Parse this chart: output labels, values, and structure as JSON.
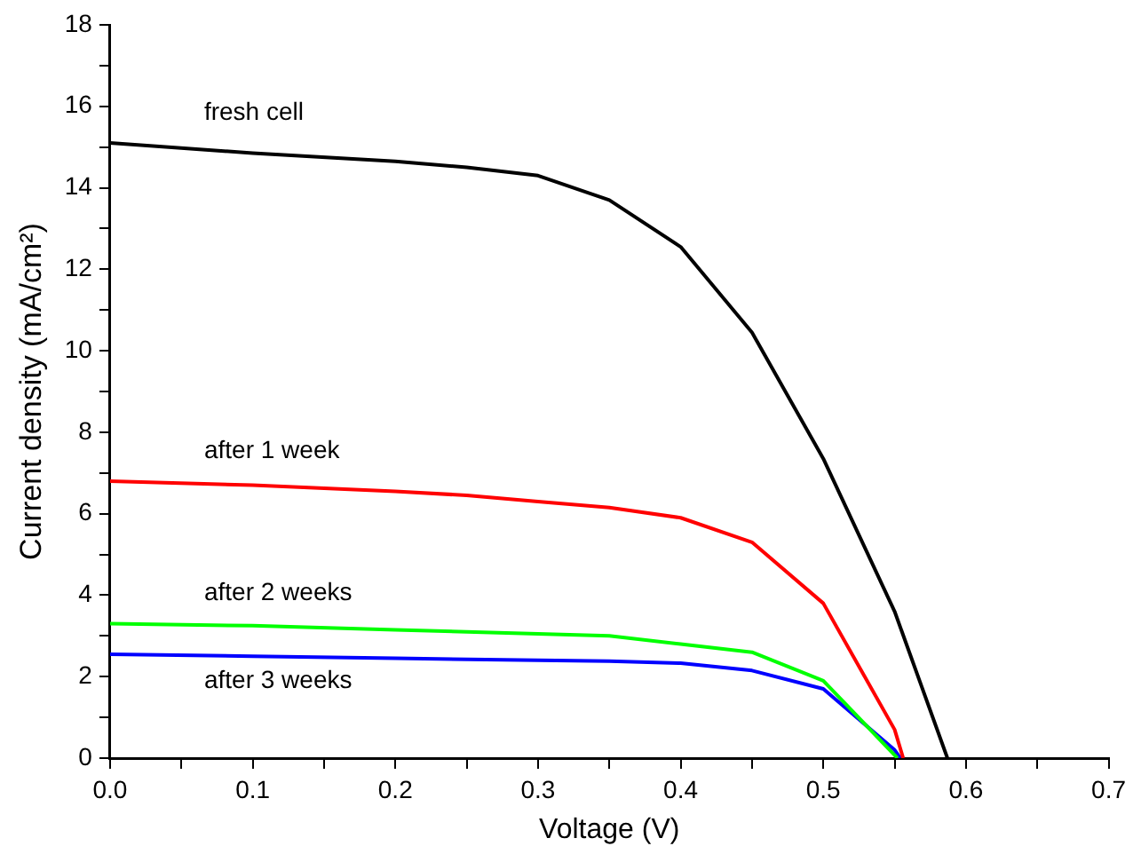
{
  "chart_data": {
    "type": "line",
    "xlabel": "Voltage (V)",
    "ylabel": "Current density (mA/cm²)",
    "xlim": [
      0,
      0.7
    ],
    "ylim": [
      0,
      18
    ],
    "xticks": [
      {
        "value": 0,
        "label": "0.0"
      },
      {
        "value": 0.05,
        "label": null
      },
      0.1,
      {
        "value": 0.15,
        "label": null
      },
      0.2,
      {
        "value": 0.25,
        "label": null
      },
      0.3,
      {
        "value": 0.35,
        "label": null
      },
      0.4,
      {
        "value": 0.45,
        "label": null
      },
      0.5,
      {
        "value": 0.55,
        "label": null
      },
      0.6,
      {
        "value": 0.65,
        "label": null
      },
      0.7
    ],
    "yticks": [
      0,
      {
        "value": 1,
        "label": null
      },
      2,
      {
        "value": 3,
        "label": null
      },
      4,
      {
        "value": 5,
        "label": null
      },
      6,
      {
        "value": 7,
        "label": null
      },
      8,
      {
        "value": 9,
        "label": null
      },
      10,
      {
        "value": 11,
        "label": null
      },
      12,
      {
        "value": 13,
        "label": null
      },
      14,
      {
        "value": 15,
        "label": null
      },
      16,
      {
        "value": 17,
        "label": null
      },
      18
    ],
    "grid": false,
    "legend": false,
    "marker": "none",
    "line_style": "solid",
    "series": [
      {
        "name": "fresh cell",
        "color": "#000000",
        "x": [
          0,
          0.1,
          0.2,
          0.25,
          0.3,
          0.35,
          0.4,
          0.45,
          0.5,
          0.55,
          0.587
        ],
        "values": [
          15.1,
          14.85,
          14.65,
          14.5,
          14.3,
          13.7,
          12.55,
          10.45,
          7.35,
          3.6,
          0
        ]
      },
      {
        "name": "after 1 week",
        "color": "#ff0000",
        "x": [
          0,
          0.1,
          0.2,
          0.25,
          0.3,
          0.35,
          0.4,
          0.45,
          0.5,
          0.55,
          0.556
        ],
        "values": [
          6.8,
          6.7,
          6.55,
          6.45,
          6.3,
          6.15,
          5.9,
          5.3,
          3.8,
          0.7,
          0
        ]
      },
      {
        "name": "after 2 weeks",
        "color": "#00ff00",
        "x": [
          0,
          0.1,
          0.2,
          0.3,
          0.35,
          0.4,
          0.45,
          0.5,
          0.552
        ],
        "values": [
          3.3,
          3.25,
          3.15,
          3.05,
          3.0,
          2.8,
          2.6,
          1.9,
          0
        ]
      },
      {
        "name": "after 3 weeks",
        "color": "#0000ff",
        "x": [
          0,
          0.1,
          0.2,
          0.3,
          0.35,
          0.4,
          0.45,
          0.5,
          0.55,
          0.554
        ],
        "values": [
          2.55,
          2.5,
          2.45,
          2.4,
          2.38,
          2.33,
          2.15,
          1.7,
          0.2,
          0
        ]
      }
    ]
  }
}
